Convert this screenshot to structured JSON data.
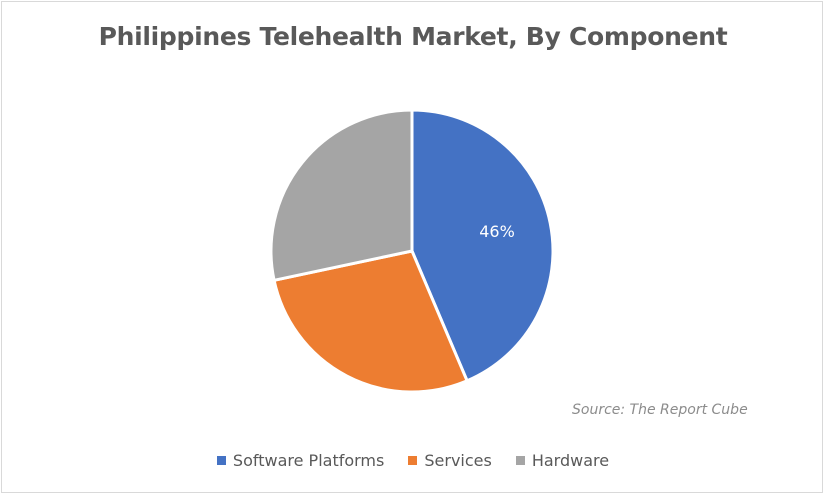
{
  "chart_data": {
    "type": "pie",
    "title": "Philippines Telehealth Market, By Component",
    "categories": [
      "Software Platforms",
      "Services",
      "Hardware"
    ],
    "values": [
      46,
      27,
      27
    ],
    "colors": [
      "#4472c4",
      "#ed7d31",
      "#a5a5a5"
    ],
    "data_labels": [
      "46%",
      "",
      ""
    ],
    "legend_position": "bottom",
    "annotation": "Source: The Report Cube"
  },
  "title": "Philippines Telehealth Market, By Component",
  "source": "Source: The Report Cube",
  "slice_label": "46%",
  "legend": [
    {
      "label": "Software Platforms",
      "color": "#4472c4"
    },
    {
      "label": "Services",
      "color": "#ed7d31"
    },
    {
      "label": "Hardware",
      "color": "#a5a5a5"
    }
  ]
}
